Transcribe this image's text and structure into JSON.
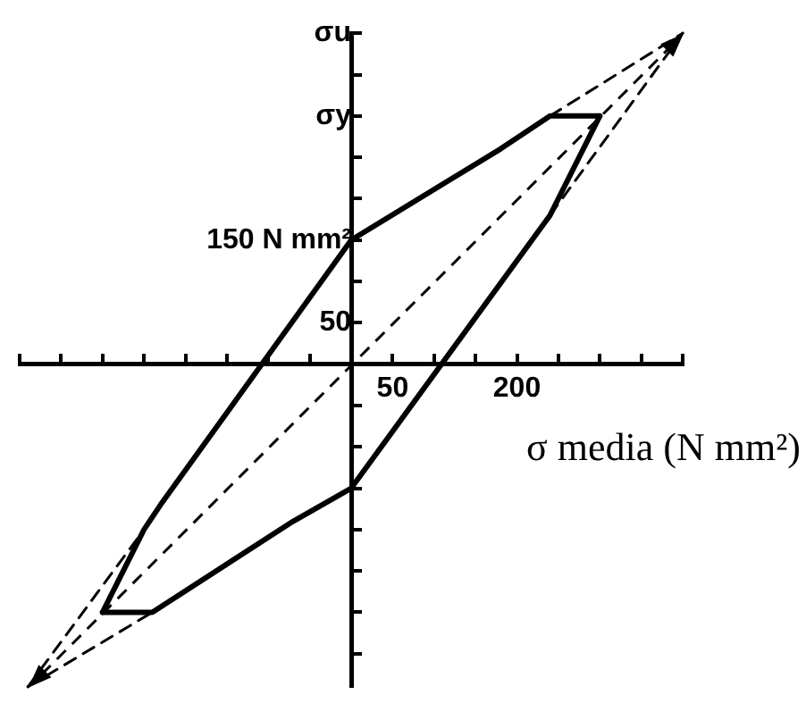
{
  "chart_data": {
    "type": "line",
    "xlabel": "σ media (N mm²)",
    "xlim": [
      -400,
      400
    ],
    "ylim": [
      -390,
      400
    ],
    "xticks": [
      {
        "value": -400,
        "label": null
      },
      {
        "value": -350,
        "label": null
      },
      {
        "value": -300,
        "label": null
      },
      {
        "value": -250,
        "label": null
      },
      {
        "value": -200,
        "label": null
      },
      {
        "value": -150,
        "label": null
      },
      {
        "value": -100,
        "label": null
      },
      {
        "value": -50,
        "label": null
      },
      50,
      {
        "value": 100,
        "label": null
      },
      {
        "value": 150,
        "label": null
      },
      200,
      {
        "value": 250,
        "label": null
      },
      {
        "value": 300,
        "label": null
      },
      {
        "value": 350,
        "label": null
      },
      {
        "value": 400,
        "label": null
      }
    ],
    "yticks": [
      {
        "value": 400,
        "label": "σu"
      },
      {
        "value": 350,
        "label": null
      },
      {
        "value": 300,
        "label": "σy"
      },
      {
        "value": 250,
        "label": null
      },
      {
        "value": 200,
        "label": null
      },
      {
        "value": 150,
        "label": "150 N mm²"
      },
      {
        "value": 100,
        "label": null
      },
      50,
      {
        "value": -50,
        "label": null
      },
      {
        "value": -100,
        "label": null
      },
      {
        "value": -150,
        "label": null
      },
      {
        "value": -200,
        "label": null
      },
      {
        "value": -250,
        "label": null
      },
      {
        "value": -300,
        "label": null
      },
      {
        "value": -350,
        "label": null
      }
    ],
    "grid": false,
    "legend": false,
    "marker": "none",
    "series": [
      {
        "color": "#000000",
        "line_style": "solid",
        "x": [
          -300,
          -250,
          -230,
          0,
          180,
          240,
          300
        ],
        "values": [
          -300,
          -200,
          -170,
          150,
          260,
          300,
          300
        ]
      },
      {
        "color": "#000000",
        "line_style": "solid",
        "x": [
          -300,
          -240,
          -70,
          0,
          240,
          300
        ],
        "values": [
          -300,
          -300,
          -190,
          -150,
          180,
          300
        ]
      },
      {
        "color": "#000000",
        "line_style": "dashed",
        "x": [
          240,
          400
        ],
        "values": [
          300,
          400
        ]
      },
      {
        "color": "#000000",
        "line_style": "dashed",
        "x": [
          240,
          400
        ],
        "values": [
          180,
          400
        ]
      },
      {
        "color": "#000000",
        "line_style": "dashed",
        "x": [
          -390,
          -240
        ],
        "values": [
          -390,
          -300
        ]
      },
      {
        "color": "#000000",
        "line_style": "dashed",
        "x": [
          -390,
          -250
        ],
        "values": [
          -390,
          -200
        ]
      }
    ]
  }
}
